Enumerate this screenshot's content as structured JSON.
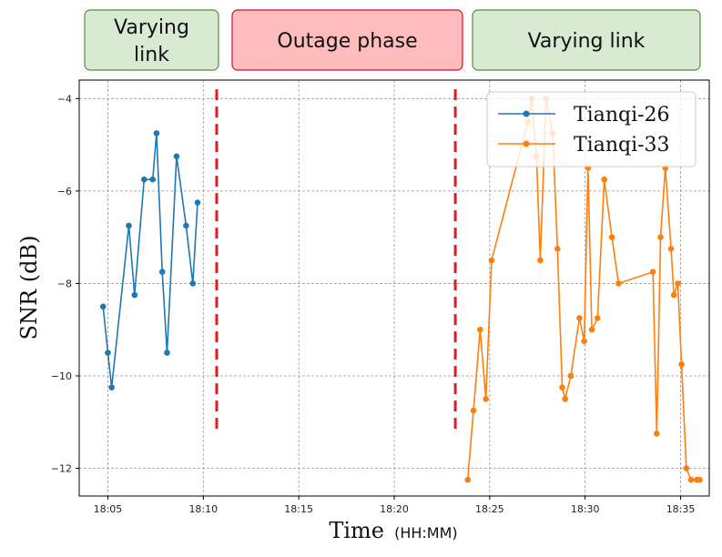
{
  "banners": [
    {
      "lines": [
        "Varying",
        "link"
      ],
      "fill": "#d9ead3",
      "stroke": "#5a8a3c"
    },
    {
      "lines": [
        "Outage phase"
      ],
      "fill": "#ffbcbc",
      "stroke": "#c8102e"
    },
    {
      "lines": [
        "Varying link"
      ],
      "fill": "#d9ead3",
      "stroke": "#5a8a3c"
    }
  ],
  "chart_data": {
    "type": "line",
    "title": "",
    "xlabel": "Time",
    "xlabel_unit": "(HH:MM)",
    "ylabel": "SNR (dB)",
    "xlim": [
      1083.5,
      1116.5
    ],
    "ylim": [
      -12.6,
      -3.6
    ],
    "xticks": [
      1085,
      1090,
      1095,
      1100,
      1105,
      1110,
      1115
    ],
    "xtick_labels": [
      "18:05",
      "18:10",
      "18:15",
      "18:20",
      "18:25",
      "18:30",
      "18:35"
    ],
    "yticks": [
      -4,
      -6,
      -8,
      -10,
      -12
    ],
    "ytick_labels": [
      "−4",
      "−6",
      "−8",
      "−10",
      "−12"
    ],
    "grid": true,
    "vlines": [
      {
        "x": 1090.7,
        "y_range": [
          -11.2,
          -3.8
        ],
        "color": "#e41a1c",
        "style": "dashed"
      },
      {
        "x": 1103.2,
        "y_range": [
          -11.2,
          -3.8
        ],
        "color": "#e41a1c",
        "style": "dashed"
      }
    ],
    "legend_position": "top-right",
    "series": [
      {
        "name": "Tianqi-26",
        "color": "#1f77b4",
        "x": [
          1084.75,
          1085.0,
          1085.2,
          1086.1,
          1086.4,
          1086.9,
          1087.35,
          1087.55,
          1087.85,
          1088.1,
          1088.6,
          1089.1,
          1089.45,
          1089.7
        ],
        "y": [
          -8.5,
          -9.5,
          -10.25,
          -6.75,
          -8.25,
          -5.75,
          -5.75,
          -4.75,
          -7.75,
          -9.5,
          -5.25,
          -6.75,
          -8.0,
          -6.25
        ]
      },
      {
        "name": "Tianqi-33",
        "color": "#ff7f0e",
        "x": [
          1103.85,
          1104.15,
          1104.5,
          1104.8,
          1105.1,
          1107.0,
          1107.2,
          1107.45,
          1107.65,
          1107.95,
          1108.3,
          1108.55,
          1108.8,
          1108.95,
          1109.25,
          1109.7,
          1109.95,
          1110.15,
          1110.35,
          1110.65,
          1111.0,
          1111.4,
          1111.75,
          1113.55,
          1113.75,
          1113.95,
          1114.2,
          1114.5,
          1114.65,
          1114.85,
          1115.05,
          1115.3,
          1115.55,
          1115.85,
          1116.0
        ],
        "y": [
          -12.25,
          -10.75,
          -9.0,
          -10.5,
          -7.5,
          -4.5,
          -4.0,
          -5.25,
          -7.5,
          -4.0,
          -4.75,
          -7.25,
          -10.25,
          -10.5,
          -10.0,
          -8.75,
          -9.25,
          -5.5,
          -9.0,
          -8.75,
          -5.75,
          -7.0,
          -8.0,
          -7.75,
          -11.25,
          -7.0,
          -5.5,
          -7.25,
          -8.25,
          -8.0,
          -9.75,
          -12.0,
          -12.25,
          -12.25,
          -12.25
        ]
      }
    ]
  }
}
